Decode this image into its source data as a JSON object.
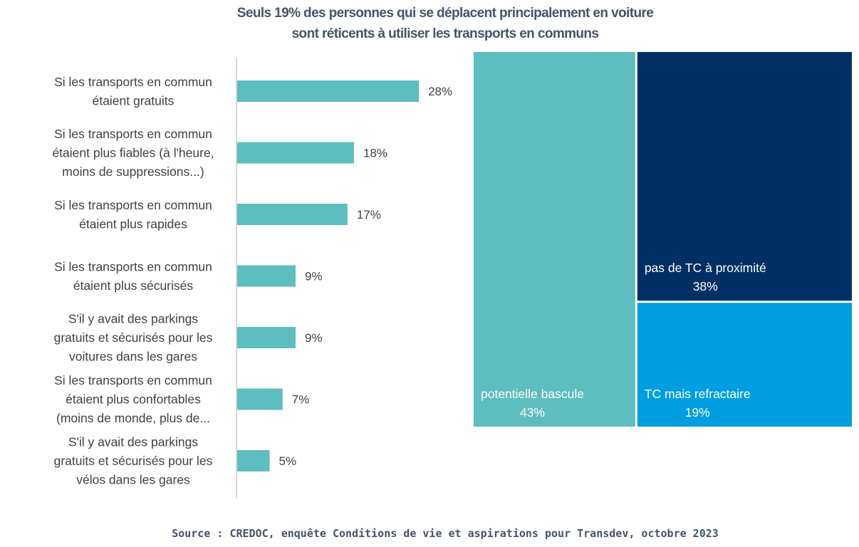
{
  "title": {
    "line1": "Seuls 19% des personnes qui se déplacent principalement en voiture",
    "line2": "sont réticents à utiliser les transports en communs"
  },
  "source": "Source : CREDOC, enquête Conditions de vie et aspirations pour Transdev, octobre 2023",
  "colors": {
    "bar": "#5dbdbf",
    "axis": "#bfbfbf",
    "text": "#404040",
    "title": "#44546a",
    "potentielle": "#5dbdbf",
    "pas_tc": "#003063",
    "refractaire": "#009ee0"
  },
  "chart_data": [
    {
      "type": "bar",
      "orientation": "horizontal",
      "categories": [
        [
          "Si les transports en commun",
          "étaient gratuits"
        ],
        [
          "Si les transports en commun",
          "étaient plus fiables (à l'heure,",
          "moins de suppressions...)"
        ],
        [
          "Si les transports en commun",
          "étaient plus rapides"
        ],
        [
          "Si les transports en commun",
          "étaient plus sécurisés"
        ],
        [
          "S'il y avait des parkings",
          "gratuits et sécurisés pour les",
          "voitures dans les gares"
        ],
        [
          "Si les transports en commun",
          "étaient plus confortables",
          "(moins de monde, plus de..."
        ],
        [
          "S'il y avait des parkings",
          "gratuits et sécurisés pour les",
          "vélos dans les gares"
        ]
      ],
      "values": [
        28,
        18,
        17,
        9,
        9,
        7,
        5
      ],
      "labels": [
        "28%",
        "18%",
        "17%",
        "9%",
        "9%",
        "7%",
        "5%"
      ],
      "unit": "%",
      "xlim": [
        0,
        30
      ]
    },
    {
      "type": "treemap",
      "items": [
        {
          "key": "potentielle",
          "label": "potentielle bascule",
          "value": 43,
          "value_label": "43%"
        },
        {
          "key": "pas_tc",
          "label": "pas de TC à proximité",
          "value": 38,
          "value_label": "38%"
        },
        {
          "key": "refractaire",
          "label": "TC mais refractaire",
          "value": 19,
          "value_label": "19%"
        }
      ]
    }
  ]
}
